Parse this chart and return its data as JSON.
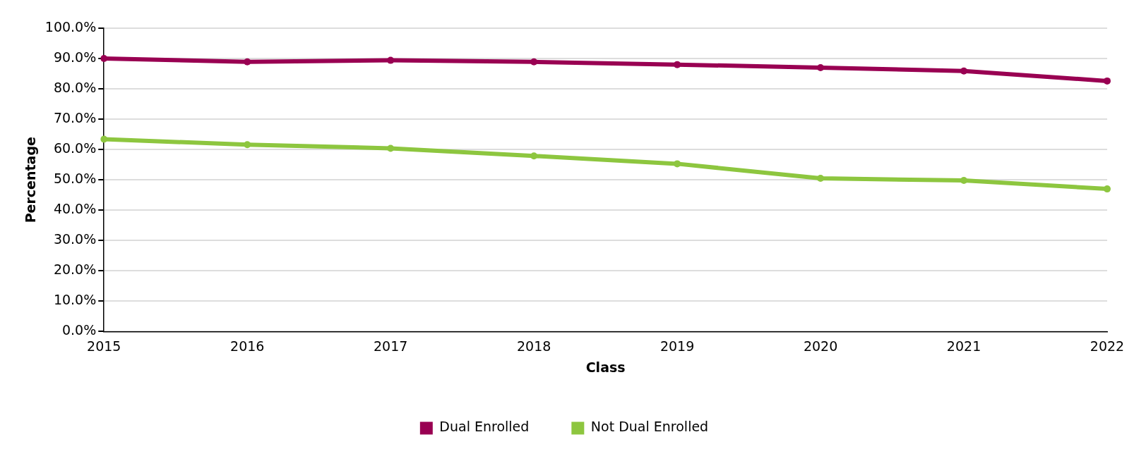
{
  "chart_data": {
    "type": "line",
    "xlabel": "Class",
    "ylabel": "Percentage",
    "categories": [
      "2015",
      "2016",
      "2017",
      "2018",
      "2019",
      "2020",
      "2021",
      "2022"
    ],
    "series": [
      {
        "name": "Dual Enrolled",
        "color": "#990052",
        "values": [
          90.0,
          88.9,
          89.4,
          88.9,
          88.0,
          87.0,
          85.9,
          82.6
        ]
      },
      {
        "name": "Not Dual Enrolled",
        "color": "#8dc63f",
        "values": [
          63.4,
          61.6,
          60.4,
          57.9,
          55.3,
          50.5,
          49.8,
          47.0
        ]
      }
    ],
    "ylim": [
      0,
      100
    ],
    "yticks": [
      {
        "value": 0,
        "label": "0.0%"
      },
      {
        "value": 10,
        "label": "10.0%"
      },
      {
        "value": 20,
        "label": "20.0%"
      },
      {
        "value": 30,
        "label": "30.0%"
      },
      {
        "value": 40,
        "label": "40.0%"
      },
      {
        "value": 50,
        "label": "50.0%"
      },
      {
        "value": 60,
        "label": "60.0%"
      },
      {
        "value": 70,
        "label": "70.0%"
      },
      {
        "value": 80,
        "label": "80.0%"
      },
      {
        "value": 90,
        "label": "90.0%"
      },
      {
        "value": 100,
        "label": "100.0%"
      }
    ],
    "grid": "y",
    "legend": "bottom",
    "marker": "circle",
    "line_style": "solid"
  }
}
